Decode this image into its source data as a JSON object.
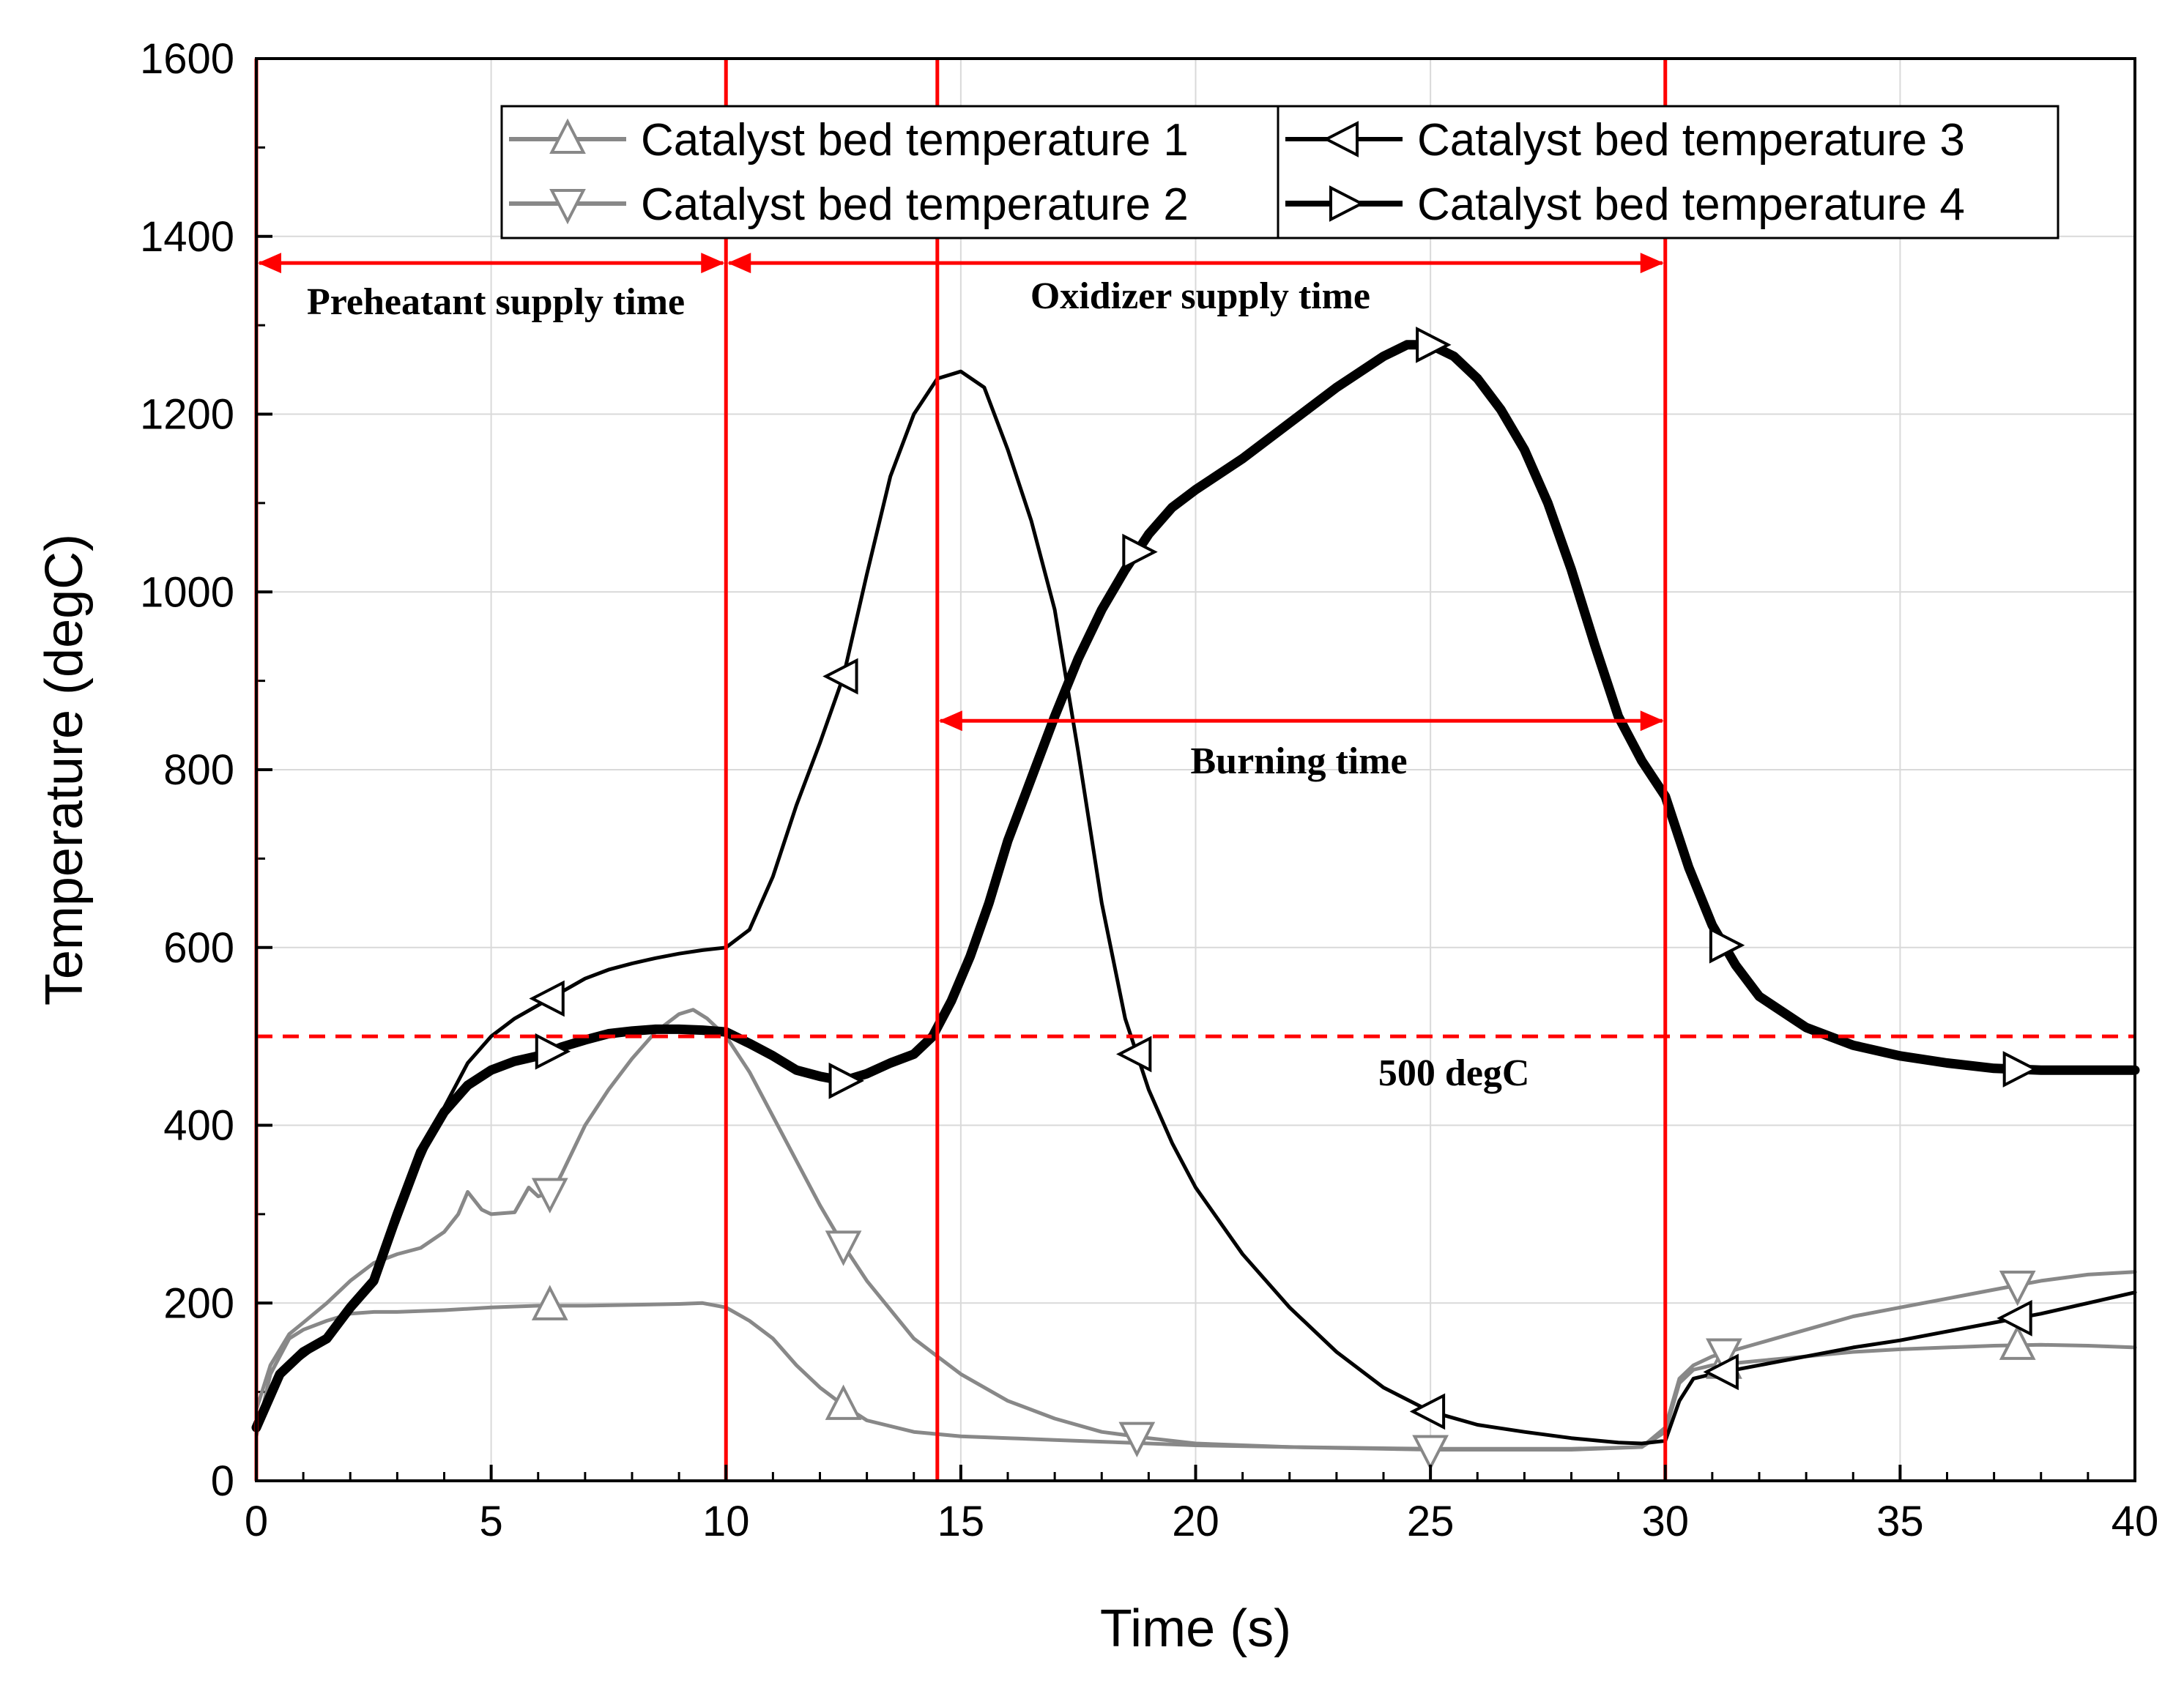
{
  "chart_data": {
    "type": "line",
    "xlabel": "Time (s)",
    "ylabel": "Temperature (degC)",
    "xlim": [
      0,
      40
    ],
    "ylim": [
      0,
      1600
    ],
    "xticks": [
      0,
      5,
      10,
      15,
      20,
      25,
      30,
      35,
      40
    ],
    "yticks": [
      0,
      200,
      400,
      600,
      800,
      1000,
      1200,
      1400,
      1600
    ],
    "grid": true,
    "legend_position": "top",
    "series": [
      {
        "name": "Catalyst bed temperature 1",
        "color": "#888888",
        "marker": "triangle-up",
        "x": [
          0,
          0.3,
          0.7,
          1,
          1.5,
          2,
          2.5,
          3,
          4,
          5,
          6,
          7,
          8,
          9,
          9.5,
          10,
          10.5,
          11,
          11.5,
          12,
          12.5,
          13,
          14,
          15,
          16,
          17,
          18,
          19,
          20,
          22,
          25,
          28,
          29.5,
          30,
          30.3,
          30.6,
          31,
          32,
          33,
          34,
          35,
          36,
          37,
          38,
          39,
          40
        ],
        "y": [
          50,
          120,
          160,
          170,
          180,
          188,
          190,
          190,
          192,
          195,
          197,
          197,
          198,
          199,
          200,
          195,
          180,
          160,
          130,
          105,
          85,
          68,
          55,
          50,
          48,
          46,
          44,
          42,
          40,
          38,
          36,
          36,
          38,
          55,
          110,
          125,
          130,
          135,
          140,
          145,
          148,
          150,
          152,
          153,
          152,
          150
        ],
        "marker_x": [
          6.25,
          12.5,
          31.25,
          37.5
        ]
      },
      {
        "name": "Catalyst bed temperature 2",
        "color": "#888888",
        "marker": "triangle-down",
        "x": [
          0,
          0.3,
          0.7,
          1,
          1.5,
          2,
          2.5,
          3,
          3.5,
          4,
          4.3,
          4.5,
          4.8,
          5,
          5.5,
          5.8,
          6,
          6.3,
          6.5,
          7,
          7.5,
          8,
          8.5,
          9,
          9.3,
          9.6,
          10,
          10.5,
          11,
          11.5,
          12,
          12.5,
          13,
          14,
          15,
          16,
          17,
          18,
          19,
          20,
          22,
          25,
          28,
          29.5,
          30,
          30.3,
          30.6,
          31,
          32,
          33,
          34,
          35,
          36,
          37,
          38,
          39,
          40
        ],
        "y": [
          80,
          130,
          165,
          178,
          200,
          225,
          245,
          255,
          262,
          280,
          300,
          325,
          305,
          300,
          302,
          330,
          320,
          325,
          345,
          400,
          440,
          475,
          505,
          525,
          530,
          520,
          500,
          460,
          410,
          360,
          310,
          265,
          225,
          160,
          120,
          90,
          70,
          55,
          48,
          42,
          38,
          35,
          35,
          38,
          60,
          115,
          130,
          140,
          155,
          170,
          185,
          195,
          205,
          215,
          225,
          232,
          235
        ],
        "marker_x": [
          6.25,
          12.5,
          18.75,
          25,
          31.25,
          37.5
        ]
      },
      {
        "name": "Catalyst bed temperature 3",
        "color": "#000000",
        "marker": "triangle-left",
        "x": [
          0,
          0.5,
          1,
          1.5,
          2,
          2.5,
          3,
          3.5,
          4,
          4.5,
          5,
          5.5,
          6,
          6.5,
          7,
          7.5,
          8,
          8.5,
          9,
          9.5,
          10,
          10.5,
          11,
          11.5,
          12,
          12.5,
          13,
          13.5,
          14,
          14.5,
          15,
          15.5,
          16,
          16.5,
          17,
          17.5,
          18,
          18.5,
          19,
          19.5,
          20,
          21,
          22,
          23,
          24,
          25,
          26,
          27,
          28,
          29,
          29.5,
          30,
          30.3,
          30.6,
          31,
          32,
          33,
          34,
          35,
          36,
          37,
          38,
          39,
          40
        ],
        "y": [
          55,
          120,
          140,
          160,
          200,
          230,
          290,
          360,
          420,
          470,
          500,
          520,
          535,
          550,
          565,
          575,
          582,
          588,
          593,
          597,
          600,
          620,
          680,
          760,
          830,
          905,
          1020,
          1130,
          1200,
          1240,
          1248,
          1230,
          1160,
          1080,
          980,
          820,
          650,
          520,
          440,
          380,
          330,
          255,
          195,
          145,
          105,
          78,
          63,
          55,
          48,
          43,
          42,
          45,
          90,
          115,
          120,
          130,
          140,
          150,
          158,
          168,
          178,
          188,
          200,
          212
        ],
        "marker_x": [
          6.25,
          12.5,
          18.75,
          25,
          31.25,
          37.5
        ]
      },
      {
        "name": "Catalyst bed temperature 4",
        "color": "#000000",
        "marker": "triangle-right",
        "x": [
          0,
          0.5,
          1,
          1.5,
          2,
          2.5,
          3,
          3.5,
          4,
          4.5,
          5,
          5.5,
          6,
          6.5,
          7,
          7.5,
          8,
          8.5,
          9,
          9.5,
          10,
          10.5,
          11,
          11.5,
          12,
          12.5,
          13,
          13.5,
          14,
          14.4,
          14.8,
          15.2,
          15.6,
          16,
          16.5,
          17,
          17.5,
          18,
          18.5,
          19,
          19.5,
          20,
          21,
          22,
          23,
          24,
          24.5,
          25,
          25.5,
          26,
          26.5,
          27,
          27.5,
          28,
          28.5,
          29,
          29.5,
          30,
          30.5,
          31,
          31.5,
          32,
          33,
          34,
          35,
          36,
          37,
          38,
          39,
          40
        ],
        "y": [
          60,
          120,
          145,
          160,
          195,
          225,
          300,
          370,
          415,
          445,
          462,
          472,
          478,
          488,
          496,
          503,
          506,
          508,
          508,
          507,
          505,
          492,
          478,
          462,
          455,
          450,
          458,
          470,
          480,
          500,
          540,
          590,
          650,
          720,
          790,
          860,
          925,
          980,
          1025,
          1065,
          1095,
          1115,
          1150,
          1190,
          1230,
          1265,
          1278,
          1278,
          1265,
          1240,
          1205,
          1160,
          1100,
          1025,
          940,
          860,
          810,
          770,
          690,
          625,
          580,
          545,
          510,
          490,
          478,
          470,
          464,
          462,
          462,
          462
        ],
        "marker_x": [
          6.25,
          12.5,
          18.75,
          25,
          31.25,
          37.5
        ]
      }
    ],
    "reference_lines": {
      "vertical_x": [
        0,
        10,
        14.5,
        30
      ],
      "horizontal_dashed_y": 500,
      "color": "#ff0000"
    },
    "spans": [
      {
        "label": "Preheatant supply time",
        "x_from": 0,
        "x_to": 10,
        "y": 1370
      },
      {
        "label": "Oxidizer supply time",
        "x_from": 10,
        "x_to": 30,
        "y": 1370
      },
      {
        "label": "Burning time",
        "x_from": 14.5,
        "x_to": 30,
        "y": 855
      }
    ],
    "annotations": [
      {
        "text": "500 degC",
        "x": 25.5,
        "y": 445
      }
    ]
  }
}
